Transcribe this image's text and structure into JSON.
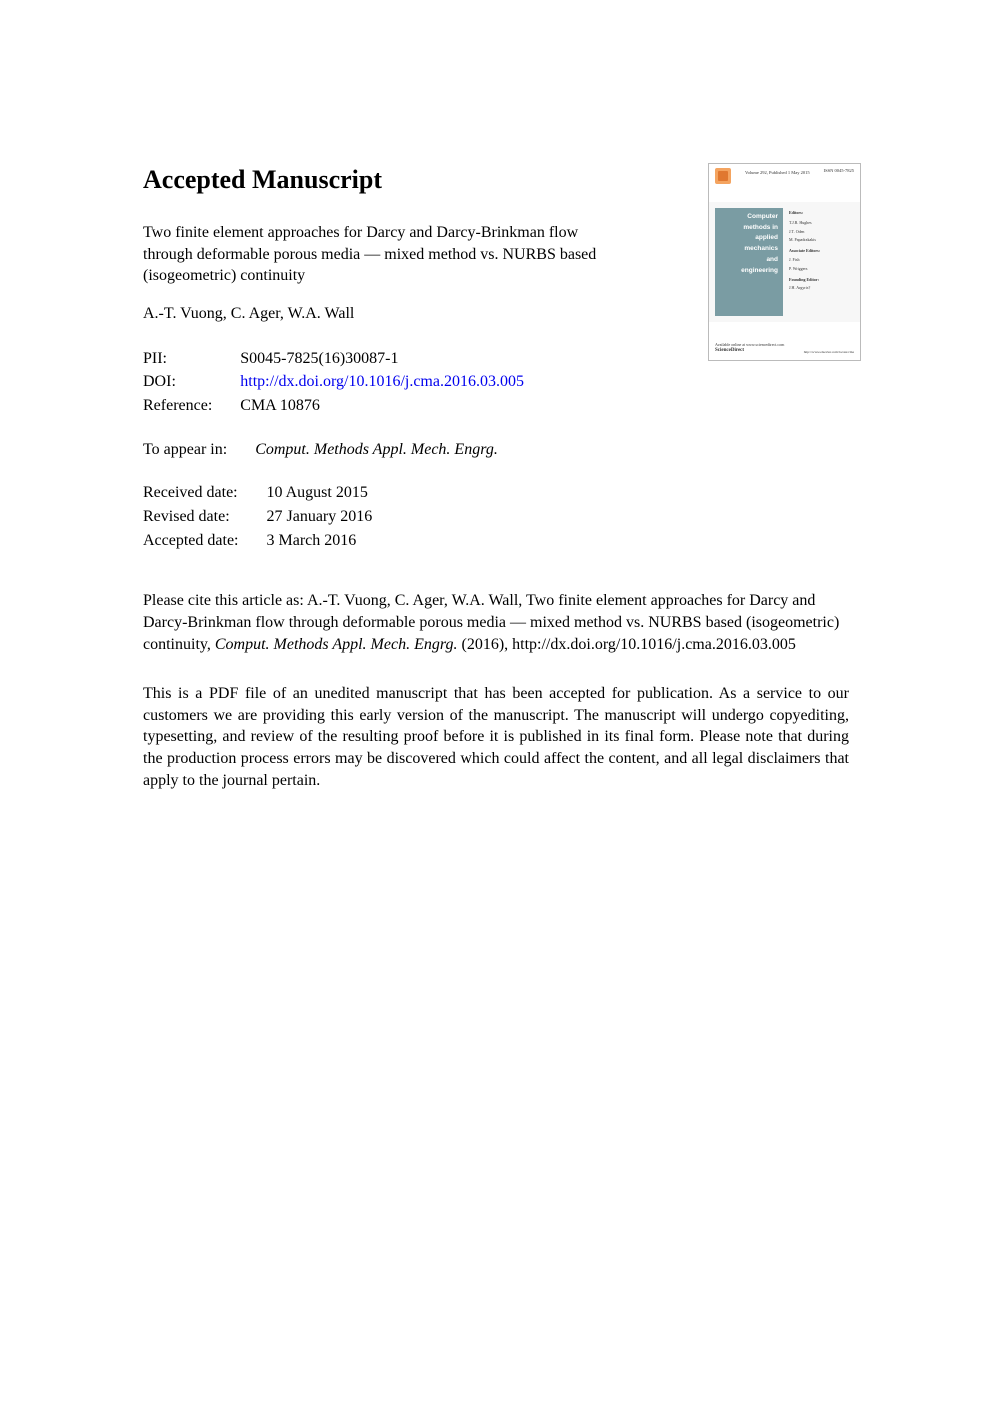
{
  "heading": "Accepted Manuscript",
  "title": "Two finite element approaches for Darcy and Darcy-Brinkman flow through deformable porous media — mixed method vs. NURBS based (isogeometric) continuity",
  "authors": "A.-T. Vuong, C. Ager, W.A. Wall",
  "meta": {
    "pii_label": "PII:",
    "pii_value": "S0045-7825(16)30087-1",
    "doi_label": "DOI:",
    "doi_value": "http://dx.doi.org/10.1016/j.cma.2016.03.005",
    "reference_label": "Reference:",
    "reference_value": "CMA 10876",
    "appear_label": "To appear in:",
    "appear_value": "Comput. Methods Appl. Mech. Engrg.",
    "received_label": "Received date:",
    "received_value": "10 August 2015",
    "revised_label": "Revised date:",
    "revised_value": "27 January 2016",
    "accepted_label": "Accepted date:",
    "accepted_value": "3 March 2016"
  },
  "citation": {
    "prefix": "Please cite this article as: A.-T. Vuong, C. Ager, W.A. Wall, Two finite element approaches for Darcy and Darcy-Brinkman flow through deformable porous media — mixed method vs. NURBS based (isogeometric) continuity, ",
    "journal_italic": "Comput. Methods Appl. Mech. Engrg.",
    "suffix": " (2016), http://dx.doi.org/10.1016/j.cma.2016.03.005"
  },
  "disclaimer": "This is a PDF file of an unedited manuscript that has been accepted for publication. As a service to our customers we are providing this early version of the manuscript. The manuscript will undergo copyediting, typesetting, and review of the resulting proof before it is published in its final form. Please note that during the production process errors may be discovered which could affect the content, and all legal disclaimers that apply to the journal pertain.",
  "thumb": {
    "volume": "Volume 292, Published 1 May 2015",
    "issn": "ISSN 0045-7825",
    "journal_lines": [
      "Computer",
      "methods in",
      "applied",
      "mechanics",
      "and",
      "engineering"
    ],
    "editors_label": "Editors:",
    "editors": [
      "T.J.R. Hughes",
      "J.T. Oden",
      "M. Papadrakakis"
    ],
    "assoc_label": "Associate Editors:",
    "assoc": [
      "J. Fish",
      "P. Wriggers"
    ],
    "founding_label": "Founding Editor:",
    "founding": [
      "J.H. Argyris†"
    ],
    "sd_line1": "Available online at www.sciencedirect.com",
    "sd_brand": "ScienceDirect",
    "thumb_url": "http://www.elsevier.com/locate/cma"
  },
  "colors": {
    "link": "#0000ee",
    "thumb_accent": "#7a9ca3",
    "thumb_border": "#bbbbbb",
    "background": "#ffffff",
    "text": "#000000"
  }
}
